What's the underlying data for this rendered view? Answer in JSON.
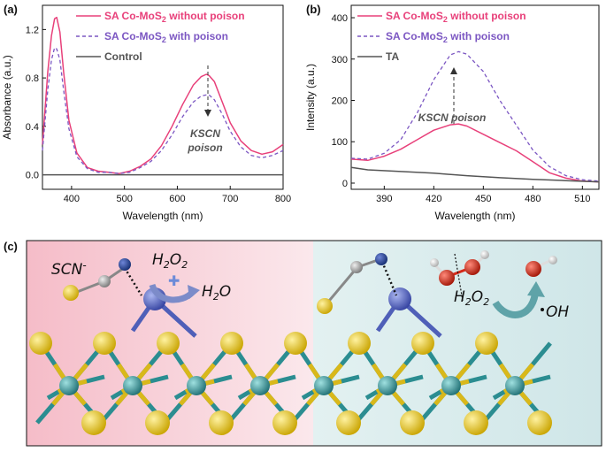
{
  "chart_data": [
    {
      "panel": "(a)",
      "type": "line",
      "xlabel": "Wavelength (nm)",
      "ylabel": "Absorbance (a.u.)",
      "xlim": [
        345,
        800
      ],
      "ylim": [
        -0.12,
        1.4
      ],
      "xticks": [
        400,
        500,
        600,
        700,
        800
      ],
      "yticks": [
        0.0,
        0.4,
        0.8,
        1.2
      ],
      "ytick_labels": [
        "0.0",
        "0.4",
        "0.8",
        "1.2"
      ],
      "legend_position": "top-left",
      "annotation": [
        "KSCN",
        "poison"
      ],
      "series": [
        {
          "name_prefix": "SA Co-MoS",
          "name_sub": "2",
          "name_suffix": " without poison",
          "color": "#e8407a",
          "dash": "solid",
          "x": [
            345,
            355,
            362,
            368,
            372,
            378,
            385,
            395,
            410,
            430,
            450,
            470,
            490,
            510,
            530,
            550,
            570,
            590,
            610,
            630,
            645,
            655,
            660,
            670,
            685,
            700,
            720,
            740,
            760,
            780,
            800
          ],
          "y": [
            0.25,
            0.85,
            1.15,
            1.29,
            1.3,
            1.18,
            0.85,
            0.45,
            0.18,
            0.06,
            0.03,
            0.02,
            0.01,
            0.03,
            0.07,
            0.13,
            0.24,
            0.4,
            0.58,
            0.74,
            0.81,
            0.83,
            0.82,
            0.77,
            0.6,
            0.43,
            0.28,
            0.2,
            0.17,
            0.19,
            0.25
          ]
        },
        {
          "name_prefix": "SA Co-MoS",
          "name_sub": "2",
          "name_suffix": " with poison",
          "color": "#7b56c2",
          "dash": "dashed",
          "x": [
            345,
            355,
            362,
            368,
            372,
            378,
            385,
            395,
            410,
            430,
            450,
            470,
            490,
            510,
            530,
            550,
            570,
            590,
            610,
            630,
            645,
            655,
            660,
            670,
            685,
            700,
            720,
            740,
            760,
            780,
            800
          ],
          "y": [
            0.2,
            0.7,
            0.95,
            1.05,
            1.04,
            0.95,
            0.7,
            0.38,
            0.15,
            0.05,
            0.02,
            0.02,
            0.01,
            0.02,
            0.06,
            0.11,
            0.2,
            0.33,
            0.48,
            0.6,
            0.65,
            0.66,
            0.66,
            0.62,
            0.5,
            0.36,
            0.23,
            0.16,
            0.14,
            0.16,
            0.2
          ]
        },
        {
          "name": "Control",
          "color": "#555555",
          "dash": "solid",
          "x": [
            345,
            800
          ],
          "y": [
            0.0,
            0.0
          ]
        }
      ]
    },
    {
      "panel": "(b)",
      "type": "line",
      "xlabel": "Wavelength (nm)",
      "ylabel": "Intensity (a.u.)",
      "xlim": [
        370,
        520
      ],
      "ylim": [
        -15,
        430
      ],
      "xticks": [
        390,
        420,
        450,
        480,
        510
      ],
      "yticks": [
        0,
        100,
        200,
        300,
        400
      ],
      "legend_position": "top-left",
      "annotation": [
        "KSCN poison"
      ],
      "series": [
        {
          "name_prefix": "SA Co-MoS",
          "name_sub": "2",
          "name_suffix": " without poison",
          "color": "#e8407a",
          "dash": "solid",
          "x": [
            370,
            380,
            390,
            400,
            410,
            420,
            430,
            435,
            440,
            450,
            460,
            470,
            480,
            490,
            500,
            510,
            520
          ],
          "y": [
            58,
            55,
            65,
            82,
            105,
            128,
            141,
            143,
            138,
            118,
            98,
            78,
            52,
            25,
            12,
            5,
            3
          ]
        },
        {
          "name_prefix": "SA Co-MoS",
          "name_sub": "2",
          "name_suffix": " with poison",
          "color": "#7b56c2",
          "dash": "dashed",
          "x": [
            370,
            380,
            390,
            400,
            410,
            420,
            430,
            435,
            440,
            450,
            460,
            470,
            480,
            490,
            500,
            510,
            520
          ],
          "y": [
            60,
            58,
            72,
            105,
            170,
            250,
            310,
            318,
            312,
            270,
            200,
            140,
            80,
            40,
            18,
            8,
            5
          ]
        },
        {
          "name": "TA",
          "color": "#555555",
          "dash": "solid",
          "x": [
            370,
            380,
            400,
            420,
            440,
            460,
            480,
            500,
            520
          ],
          "y": [
            38,
            32,
            28,
            24,
            18,
            13,
            9,
            6,
            3
          ]
        }
      ]
    }
  ],
  "scheme": {
    "panel_label": "(c)",
    "scn_text": "SCN",
    "scn_charge": "-",
    "h2o2_left": {
      "main": "H",
      "sub1": "2",
      "mid": "O",
      "sub2": "2"
    },
    "h2o": {
      "main": "H",
      "sub": "2",
      "tail": "O"
    },
    "h2o2_right": {
      "main": "H",
      "sub1": "2",
      "mid": "O",
      "sub2": "2"
    },
    "oh_text": "OH",
    "colors": {
      "left_bg": "#f8d5dc",
      "right_bg": "#d6ebec",
      "mo": "#2e8f93",
      "s": "#e2c21c",
      "co": "#4f5fb8",
      "n": "#1f3f8f",
      "c": "#999999",
      "o": "#d52a1a",
      "h": "#dddddd"
    }
  }
}
